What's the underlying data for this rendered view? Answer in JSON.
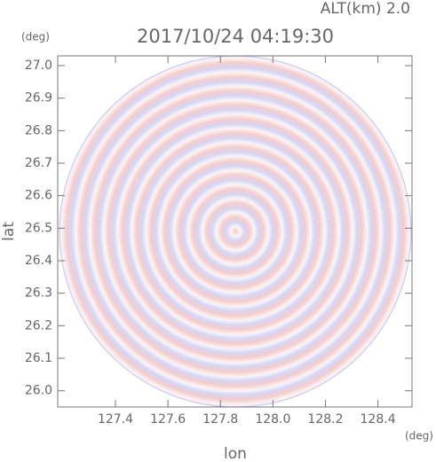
{
  "chart_data": {
    "type": "radar-ppi",
    "title": "2017/10/24 04:19:30",
    "subtitle": "ALT(km) 2.0",
    "x_label": "lon",
    "y_label": "lat",
    "x_unit": "(deg)",
    "y_unit": "(deg)",
    "xlim": [
      127.18,
      128.53
    ],
    "ylim": [
      25.95,
      27.03
    ],
    "xticks": [
      127.4,
      127.6,
      127.8,
      {
        "value": 128.0,
        "label": "128.0"
      },
      128.2,
      128.4
    ],
    "yticks": [
      {
        "value": 26.0,
        "label": "26.0"
      },
      26.1,
      26.2,
      26.3,
      26.4,
      26.5,
      26.6,
      26.7,
      26.8,
      26.9,
      {
        "value": 27.0,
        "label": "27.0"
      }
    ]
  }
}
